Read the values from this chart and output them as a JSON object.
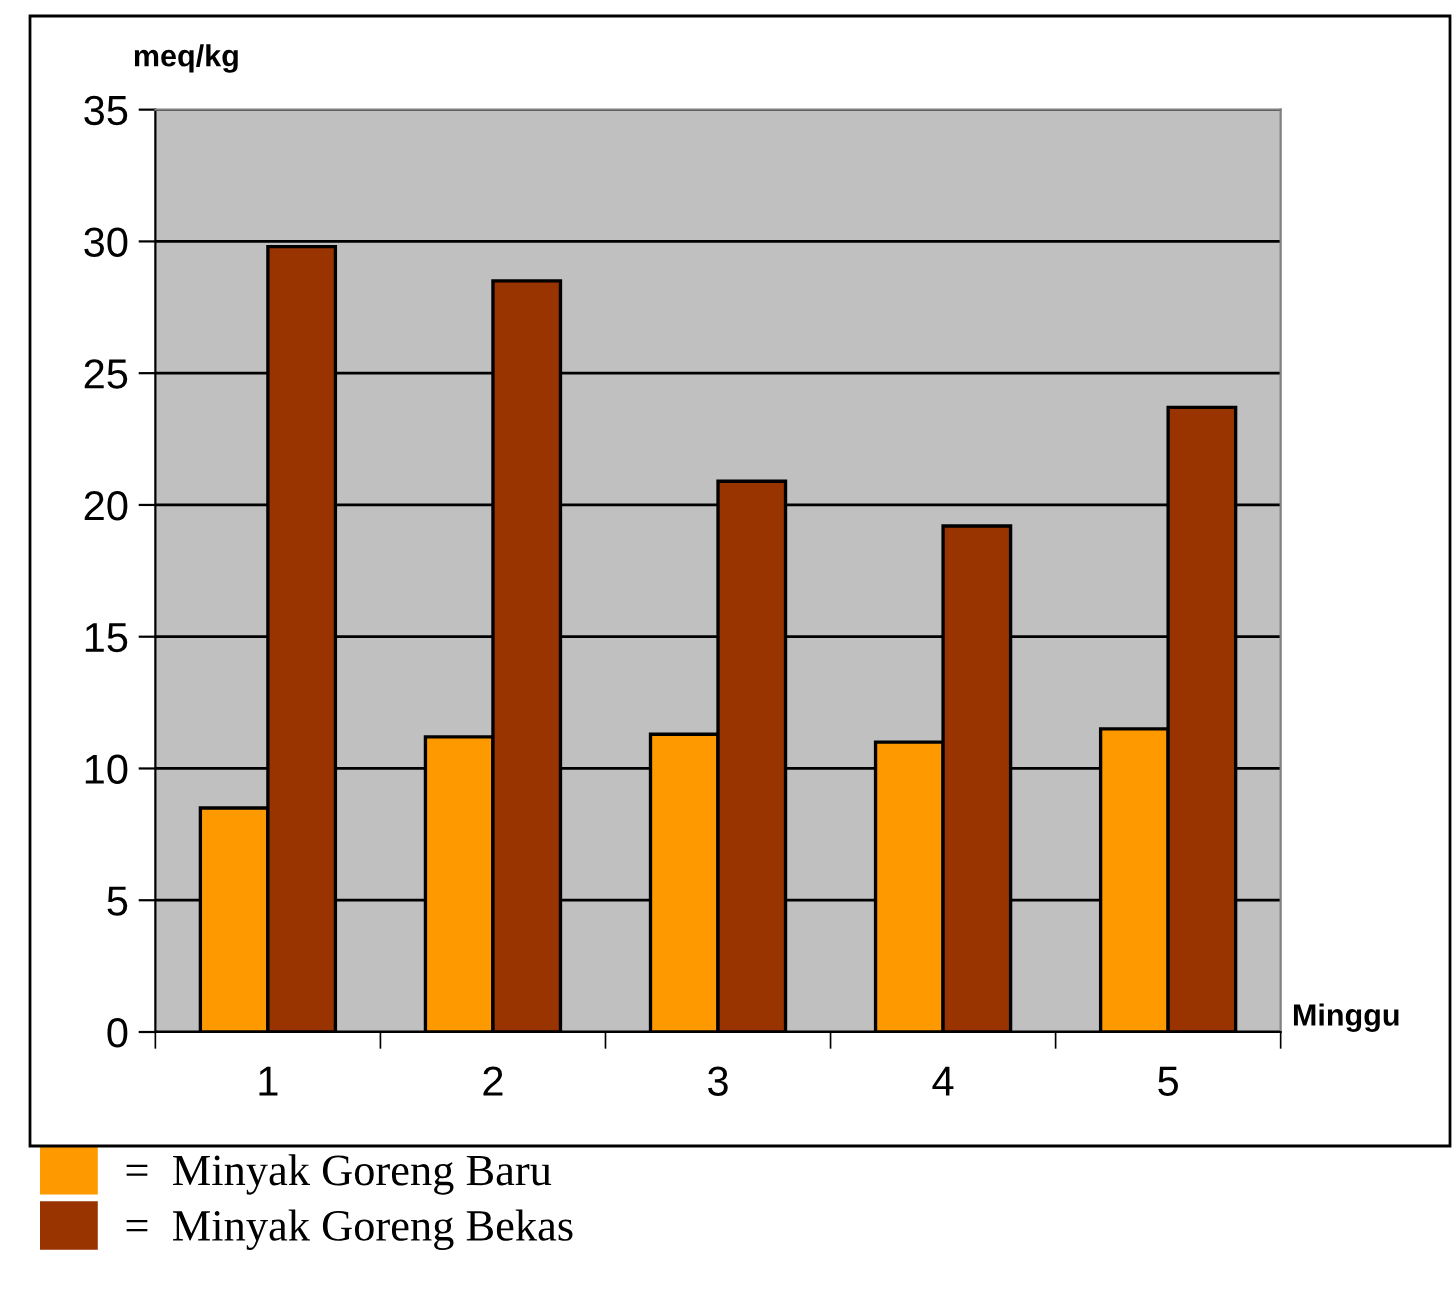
{
  "chart_data": {
    "type": "bar",
    "xlabel": "Minggu",
    "ylabel": "meq/kg",
    "categories": [
      "1",
      "2",
      "3",
      "4",
      "5"
    ],
    "series": [
      {
        "name": "=  Minyak Goreng Baru",
        "color": "#ff9900",
        "values": [
          8.5,
          11.2,
          11.3,
          11.0,
          11.5
        ]
      },
      {
        "name": "=  Minyak Goreng Bekas",
        "color": "#993300",
        "values": [
          29.8,
          28.5,
          20.9,
          19.2,
          23.7
        ]
      }
    ],
    "ylim": [
      0,
      35
    ],
    "yticks": [
      0,
      5,
      10,
      15,
      20,
      25,
      30,
      35
    ],
    "grid": "y",
    "legend": "bottom"
  }
}
